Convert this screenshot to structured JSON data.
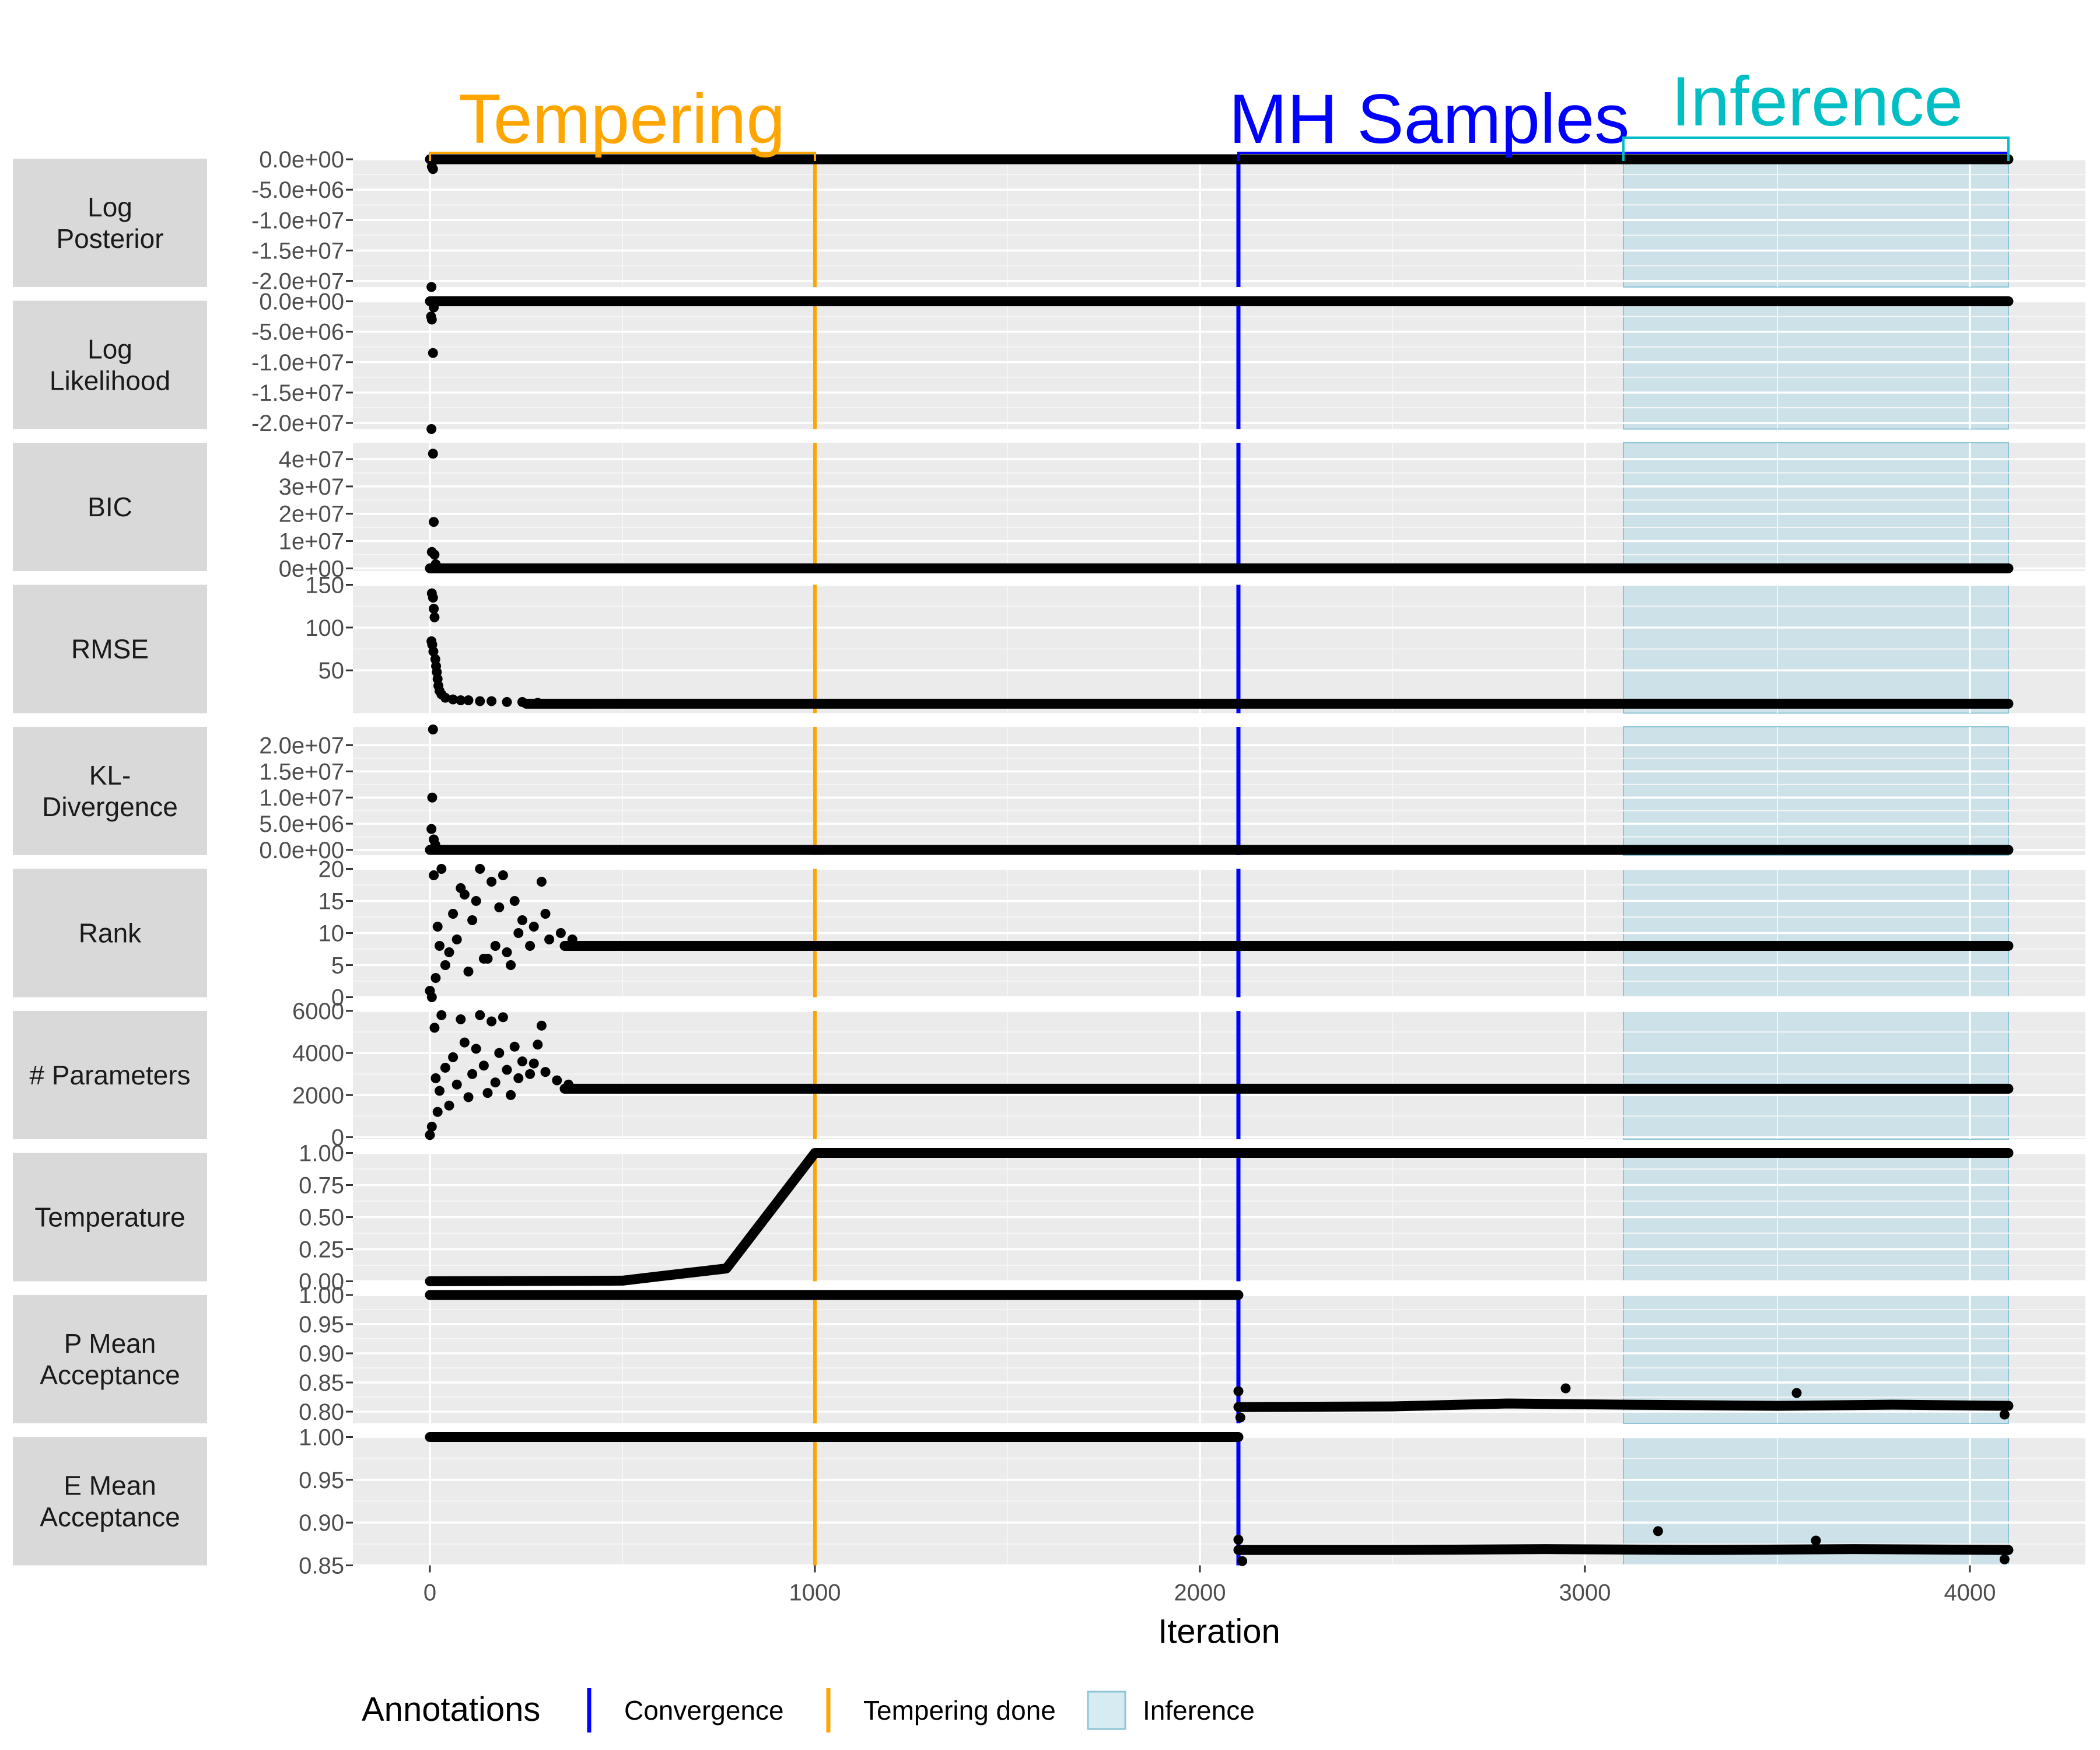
{
  "chart_data": {
    "type": "scatter",
    "xlabel": "Iteration",
    "xlim": [
      -200,
      4300
    ],
    "x_ticks": [
      0,
      1000,
      2000,
      3000,
      4000
    ],
    "x_tick_labels": [
      "0",
      "1000",
      "2000",
      "3000",
      "4000"
    ],
    "annotations": {
      "convergence_x": 2100,
      "tempering_done_x": 1000,
      "inference_range": [
        3100,
        4100
      ]
    },
    "phases": [
      {
        "label": "Tempering",
        "x_start": 0,
        "x_end": 1000,
        "color": "#FFA500"
      },
      {
        "label": "MH Samples",
        "x_start": 2100,
        "x_end": 4100,
        "color": "#0000FF"
      },
      {
        "label": "Inference",
        "x_start": 3100,
        "x_end": 4100,
        "color": "#00BFC4"
      }
    ],
    "legend": {
      "title": "Annotations",
      "items": [
        {
          "label": "Convergence",
          "kind": "line",
          "color": "#0000FF"
        },
        {
          "label": "Tempering done",
          "kind": "line",
          "color": "#FFA500"
        },
        {
          "label": "Inference",
          "kind": "box",
          "color": "#ADD8E6"
        }
      ]
    },
    "panels": [
      {
        "name": "Log\nPosterior",
        "ylim": [
          -21000000,
          100000
        ],
        "ticks": [
          0,
          -5000000,
          -10000000,
          -15000000,
          -20000000
        ],
        "tick_labels": [
          "0.0e+00",
          "-5.0e+06",
          "-1.0e+07",
          "-1.5e+07",
          "-2.0e+07"
        ],
        "points": [
          [
            5,
            -1200000
          ],
          [
            8,
            -1600000
          ],
          [
            4,
            -21000000
          ]
        ],
        "segments": [
          [
            [
              0,
              0
            ],
            [
              4100,
              0
            ]
          ]
        ]
      },
      {
        "name": "Log\nLikelihood",
        "ylim": [
          -21000000,
          100000
        ],
        "ticks": [
          0,
          -5000000,
          -10000000,
          -15000000,
          -20000000
        ],
        "tick_labels": [
          "0.0e+00",
          "-5.0e+06",
          "-1.0e+07",
          "-1.5e+07",
          "-2.0e+07"
        ],
        "points": [
          [
            3,
            -2500000
          ],
          [
            5,
            -3000000
          ],
          [
            8,
            -8500000
          ],
          [
            4,
            -21000000
          ],
          [
            10,
            -1000000
          ]
        ],
        "segments": [
          [
            [
              0,
              0
            ],
            [
              4100,
              0
            ]
          ]
        ]
      },
      {
        "name": "BIC",
        "ylim": [
          -1000000,
          46000000
        ],
        "ticks": [
          0,
          10000000,
          20000000,
          30000000,
          40000000
        ],
        "tick_labels": [
          "0e+00",
          "1e+07",
          "2e+07",
          "3e+07",
          "4e+07"
        ],
        "points": [
          [
            8,
            42000000
          ],
          [
            10,
            17000000
          ],
          [
            5,
            6000000
          ],
          [
            12,
            5000000
          ],
          [
            15,
            1500000
          ]
        ],
        "segments": [
          [
            [
              0,
              0
            ],
            [
              4100,
              0
            ]
          ]
        ]
      },
      {
        "name": "RMSE",
        "ylim": [
          0,
          150
        ],
        "ticks": [
          50,
          100,
          150
        ],
        "tick_labels": [
          "50",
          "100",
          "150"
        ],
        "points": [
          [
            5,
            140
          ],
          [
            8,
            135
          ],
          [
            10,
            122
          ],
          [
            12,
            112
          ],
          [
            4,
            84
          ],
          [
            6,
            80
          ],
          [
            9,
            72
          ],
          [
            14,
            63
          ],
          [
            16,
            55
          ],
          [
            18,
            48
          ],
          [
            20,
            40
          ],
          [
            22,
            32
          ],
          [
            25,
            26
          ],
          [
            30,
            22
          ],
          [
            40,
            18
          ],
          [
            60,
            16
          ],
          [
            80,
            15
          ],
          [
            100,
            15
          ],
          [
            130,
            14
          ],
          [
            160,
            14
          ],
          [
            200,
            13
          ],
          [
            240,
            13
          ],
          [
            280,
            12
          ]
        ],
        "segments": [
          [
            [
              250,
              11
            ],
            [
              4100,
              11
            ]
          ]
        ]
      },
      {
        "name": "KL-\nDivergence",
        "ylim": [
          -1000000,
          23500000
        ],
        "ticks": [
          0,
          5000000,
          10000000,
          15000000,
          20000000
        ],
        "tick_labels": [
          "0.0e+00",
          "5.0e+06",
          "1.0e+07",
          "1.5e+07",
          "2.0e+07"
        ],
        "points": [
          [
            8,
            23000000
          ],
          [
            6,
            10000000
          ],
          [
            4,
            4000000
          ],
          [
            10,
            2000000
          ],
          [
            14,
            1000000
          ]
        ],
        "segments": [
          [
            [
              0,
              0
            ],
            [
              4100,
              0
            ]
          ]
        ]
      },
      {
        "name": "Rank",
        "ylim": [
          0,
          20
        ],
        "ticks": [
          0,
          5,
          10,
          15,
          20
        ],
        "tick_labels": [
          "0",
          "5",
          "10",
          "15",
          "20"
        ],
        "points": [
          [
            0,
            1
          ],
          [
            5,
            0
          ],
          [
            10,
            19
          ],
          [
            30,
            20
          ],
          [
            80,
            17
          ],
          [
            130,
            20
          ],
          [
            160,
            18
          ],
          [
            190,
            19
          ],
          [
            290,
            18
          ],
          [
            40,
            5
          ],
          [
            100,
            4
          ],
          [
            150,
            6
          ],
          [
            210,
            5
          ],
          [
            60,
            13
          ],
          [
            120,
            15
          ],
          [
            180,
            14
          ],
          [
            240,
            12
          ],
          [
            20,
            11
          ],
          [
            70,
            9
          ],
          [
            110,
            12
          ],
          [
            170,
            8
          ],
          [
            230,
            10
          ],
          [
            270,
            11
          ],
          [
            310,
            9
          ],
          [
            340,
            10
          ],
          [
            370,
            9
          ],
          [
            50,
            7
          ],
          [
            140,
            6
          ],
          [
            200,
            7
          ],
          [
            260,
            8
          ],
          [
            90,
            16
          ],
          [
            220,
            15
          ],
          [
            300,
            13
          ],
          [
            15,
            3
          ],
          [
            25,
            8
          ]
        ],
        "segments": [
          [
            [
              350,
              8
            ],
            [
              4100,
              8
            ]
          ]
        ]
      },
      {
        "name": "# Parameters",
        "ylim": [
          -100,
          6000
        ],
        "ticks": [
          0,
          2000,
          4000,
          6000
        ],
        "tick_labels": [
          "0",
          "2000",
          "4000",
          "6000"
        ],
        "points": [
          [
            0,
            100
          ],
          [
            5,
            500
          ],
          [
            12,
            5200
          ],
          [
            30,
            5800
          ],
          [
            80,
            5600
          ],
          [
            130,
            5800
          ],
          [
            160,
            5500
          ],
          [
            190,
            5700
          ],
          [
            290,
            5300
          ],
          [
            20,
            1200
          ],
          [
            50,
            1500
          ],
          [
            100,
            1900
          ],
          [
            150,
            2100
          ],
          [
            210,
            2000
          ],
          [
            60,
            3800
          ],
          [
            120,
            4200
          ],
          [
            180,
            4000
          ],
          [
            240,
            3600
          ],
          [
            270,
            3500
          ],
          [
            300,
            3100
          ],
          [
            70,
            2500
          ],
          [
            110,
            3000
          ],
          [
            170,
            2600
          ],
          [
            230,
            2800
          ],
          [
            330,
            2700
          ],
          [
            360,
            2500
          ],
          [
            90,
            4500
          ],
          [
            220,
            4300
          ],
          [
            280,
            4400
          ],
          [
            40,
            3300
          ],
          [
            140,
            3400
          ],
          [
            200,
            3200
          ],
          [
            260,
            3000
          ],
          [
            15,
            2800
          ],
          [
            25,
            2200
          ]
        ],
        "segments": [
          [
            [
              350,
              2300
            ],
            [
              4100,
              2300
            ]
          ]
        ]
      },
      {
        "name": "Temperature",
        "ylim": [
          0,
          1
        ],
        "ticks": [
          0,
          0.25,
          0.5,
          0.75,
          1
        ],
        "tick_labels": [
          "0.00",
          "0.25",
          "0.50",
          "0.75",
          "1.00"
        ],
        "points": [],
        "segments": [
          [
            [
              0,
              0
            ],
            [
              500,
              0.005
            ],
            [
              770,
              0.1
            ],
            [
              1000,
              1
            ],
            [
              4100,
              1
            ]
          ]
        ]
      },
      {
        "name": "P Mean\nAcceptance",
        "ylim": [
          0.78,
          1.0
        ],
        "ticks": [
          0.8,
          0.85,
          0.9,
          0.95,
          1.0
        ],
        "tick_labels": [
          "0.80",
          "0.85",
          "0.90",
          "0.95",
          "1.00"
        ],
        "points": [
          [
            2100,
            0.835
          ],
          [
            2105,
            0.79
          ],
          [
            2950,
            0.84
          ],
          [
            3550,
            0.832
          ],
          [
            4090,
            0.795
          ]
        ],
        "segments": [
          [
            [
              0,
              1.0
            ],
            [
              2100,
              1.0
            ]
          ],
          [
            [
              2100,
              0.808
            ],
            [
              2500,
              0.809
            ],
            [
              2800,
              0.814
            ],
            [
              3100,
              0.812
            ],
            [
              3500,
              0.81
            ],
            [
              3800,
              0.812
            ],
            [
              4100,
              0.81
            ]
          ]
        ]
      },
      {
        "name": "E Mean\nAcceptance",
        "ylim": [
          0.85,
          1.0
        ],
        "ticks": [
          0.85,
          0.9,
          0.95,
          1.0
        ],
        "tick_labels": [
          "0.85",
          "0.90",
          "0.95",
          "1.00"
        ],
        "points": [
          [
            2100,
            0.88
          ],
          [
            2110,
            0.855
          ],
          [
            3190,
            0.89
          ],
          [
            3600,
            0.879
          ],
          [
            4090,
            0.857
          ]
        ],
        "segments": [
          [
            [
              0,
              1.0
            ],
            [
              2100,
              1.0
            ]
          ],
          [
            [
              2100,
              0.868
            ],
            [
              2500,
              0.868
            ],
            [
              2900,
              0.869
            ],
            [
              3300,
              0.868
            ],
            [
              3700,
              0.869
            ],
            [
              4100,
              0.868
            ]
          ]
        ]
      }
    ]
  }
}
